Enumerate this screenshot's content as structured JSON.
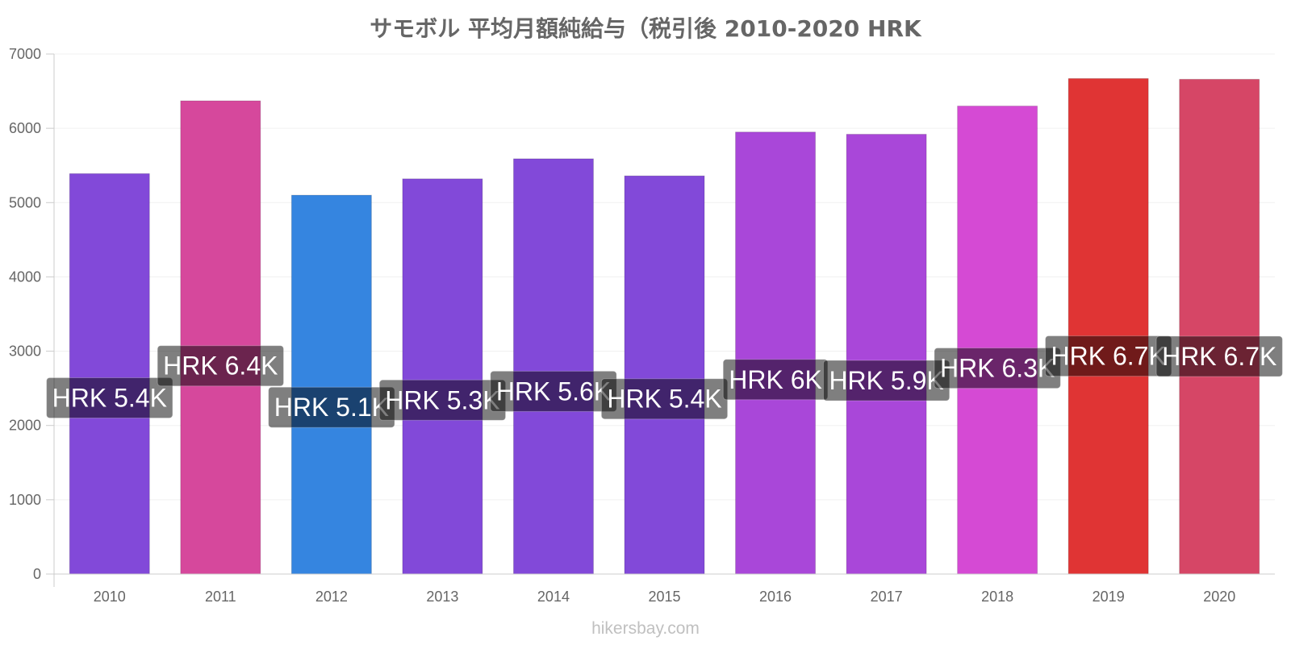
{
  "chart_data": {
    "type": "bar",
    "title": "サモボル 平均月額純給与（税引後 2010-2020 HRK",
    "xlabel": "",
    "ylabel": "",
    "ylim": [
      0,
      7000
    ],
    "yticks": [
      0,
      1000,
      2000,
      3000,
      4000,
      5000,
      6000,
      7000
    ],
    "grid": true,
    "categories": [
      "2010",
      "2011",
      "2012",
      "2013",
      "2014",
      "2015",
      "2016",
      "2017",
      "2018",
      "2019",
      "2020"
    ],
    "values": [
      5390,
      6370,
      5100,
      5320,
      5590,
      5360,
      5950,
      5920,
      6300,
      6670,
      6660
    ],
    "data_labels": [
      "HRK 5.4K",
      "HRK 6.4K",
      "HRK 5.1K",
      "HRK 5.3K",
      "HRK 5.6K",
      "HRK 5.4K",
      "HRK 6K",
      "HRK 5.9K",
      "HRK 6.3K",
      "HRK 6.7K",
      "HRK 6.7K"
    ],
    "colors": [
      "#8249d9",
      "#d6489c",
      "#3585e0",
      "#8249d9",
      "#8249d9",
      "#8249d9",
      "#a947d9",
      "#a947d9",
      "#d54ad4",
      "#e03434",
      "#d64666"
    ]
  },
  "footer": "hikersbay.com"
}
